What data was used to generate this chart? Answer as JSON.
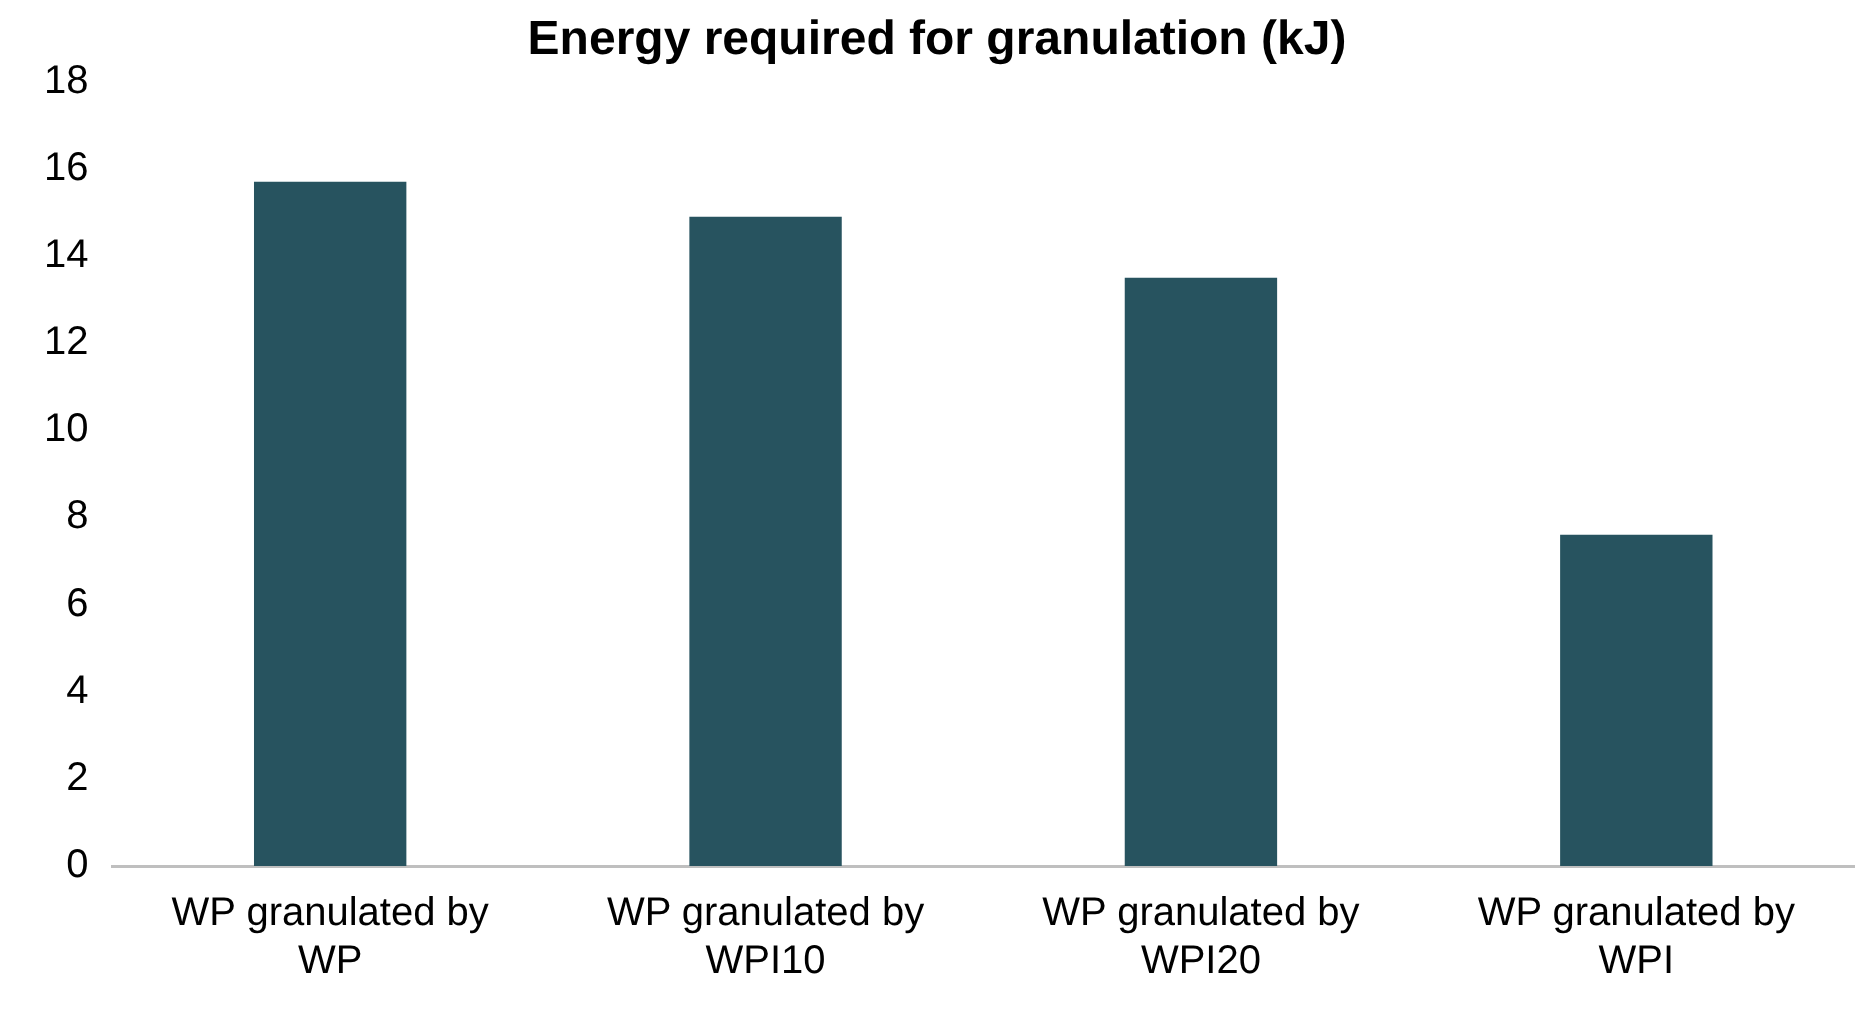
{
  "chart_data": {
    "type": "bar",
    "title": "Energy required for granulation (kJ)",
    "categories": [
      "WP granulated by WP",
      "WP granulated by WPI10",
      "WP granulated by WPI20",
      "WP granulated by WPI"
    ],
    "values": [
      15.7,
      14.9,
      13.5,
      7.6
    ],
    "color": "#27535f",
    "ylim": [
      0,
      18
    ],
    "yticks": [
      0,
      2,
      4,
      6,
      8,
      10,
      12,
      14,
      16,
      18
    ],
    "grid": false,
    "legend": false
  }
}
